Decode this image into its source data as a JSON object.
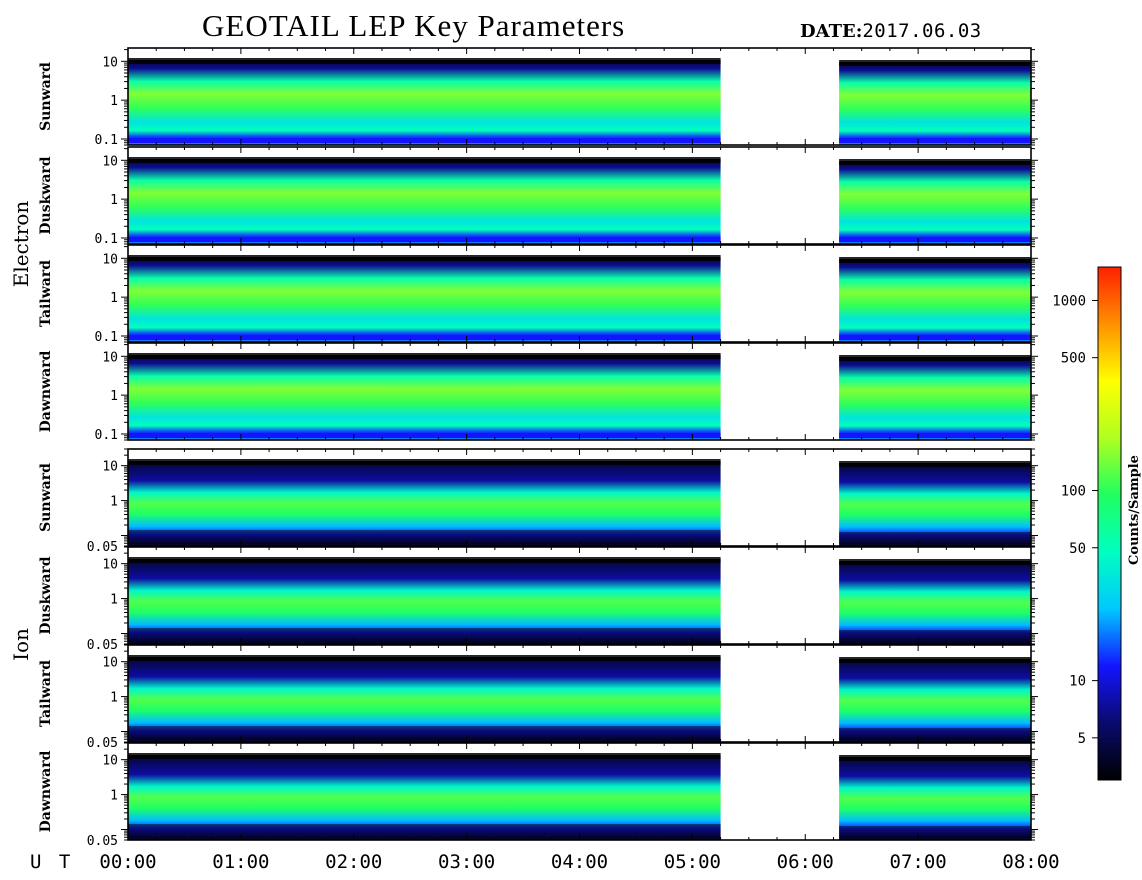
{
  "header": {
    "title": "GEOTAIL LEP Key Parameters",
    "date_label": "DATE:",
    "date_value": "2017.06.03"
  },
  "groups": [
    {
      "label": "Electron",
      "panels": [
        "Sunward",
        "Duskward",
        "Tailward",
        "Dawnward"
      ],
      "y_ticks": [
        "10",
        "1",
        "0.1"
      ],
      "y_tick_values": [
        10,
        1,
        0.1
      ]
    },
    {
      "label": "Ion",
      "panels": [
        "Sunward",
        "Duskward",
        "Tailward",
        "Dawnward"
      ],
      "y_ticks": [
        "10",
        "1",
        "0.05"
      ],
      "y_tick_values": [
        10,
        1,
        0.05
      ]
    }
  ],
  "colorbar": {
    "label": "Counts/Sample",
    "ticks": [
      "1000",
      "500",
      "100",
      "50",
      "10",
      "5"
    ],
    "tick_values": [
      1000,
      500,
      100,
      50,
      10,
      5
    ],
    "scale": "log",
    "range": [
      3,
      1500
    ],
    "colors": [
      "#000000",
      "#0a0a6e",
      "#1414ff",
      "#00c8ff",
      "#00ffc0",
      "#20ff60",
      "#b0ff20",
      "#ffff00",
      "#ff9000",
      "#ff2000"
    ]
  },
  "x_axis": {
    "prefix": "U T",
    "ticks": [
      "00:00",
      "01:00",
      "02:00",
      "03:00",
      "04:00",
      "05:00",
      "06:00",
      "07:00",
      "08:00"
    ],
    "tick_values_hours": [
      0,
      1,
      2,
      3,
      4,
      5,
      6,
      7,
      8
    ],
    "data_gap_hours": [
      5.25,
      6.3
    ]
  },
  "chart_data": {
    "type": "heatmap",
    "title": "GEOTAIL LEP Key Parameters",
    "date": "2017.06.03",
    "xlabel": "U T",
    "xlim_hours": [
      0,
      8
    ],
    "x_ticks": [
      "00:00",
      "01:00",
      "02:00",
      "03:00",
      "04:00",
      "05:00",
      "06:00",
      "07:00",
      "08:00"
    ],
    "y_scale": "log",
    "colorbar_label": "Counts/Sample",
    "colorbar_ticks": [
      1000,
      500,
      100,
      50,
      10,
      5
    ],
    "no_data_interval_hours": [
      5.25,
      6.3
    ],
    "series": [
      {
        "name": "Electron Sunward",
        "y_ticks": [
          10,
          1,
          0.1
        ],
        "peak_counts": 150
      },
      {
        "name": "Electron Duskward",
        "y_ticks": [
          10,
          1,
          0.1
        ],
        "peak_counts": 150
      },
      {
        "name": "Electron Tailward",
        "y_ticks": [
          10,
          1,
          0.1
        ],
        "peak_counts": 150
      },
      {
        "name": "Electron Dawnward",
        "y_ticks": [
          10,
          1,
          0.1
        ],
        "peak_counts": 150
      },
      {
        "name": "Ion Sunward",
        "y_ticks": [
          10,
          1,
          0.05
        ],
        "peak_counts": 120
      },
      {
        "name": "Ion Duskward",
        "y_ticks": [
          10,
          1,
          0.05
        ],
        "peak_counts": 120
      },
      {
        "name": "Ion Tailward",
        "y_ticks": [
          10,
          1,
          0.05
        ],
        "peak_counts": 120
      },
      {
        "name": "Ion Dawnward",
        "y_ticks": [
          10,
          1,
          0.05
        ],
        "peak_counts": 120
      }
    ]
  }
}
